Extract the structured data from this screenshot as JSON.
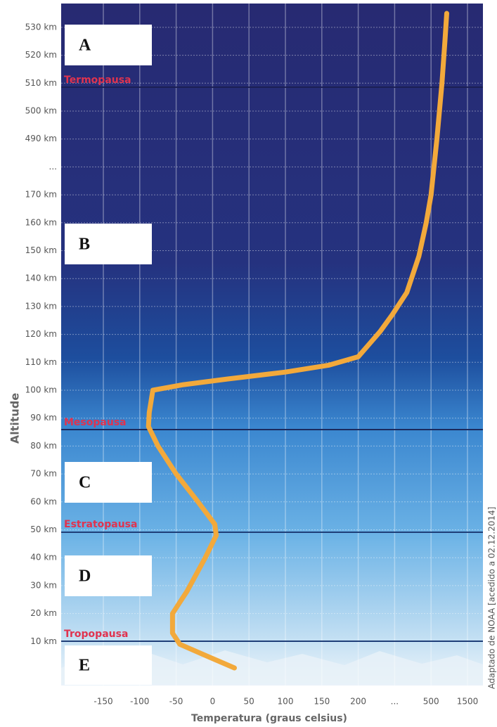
{
  "chart_data": {
    "type": "line",
    "y_label": "Altitude",
    "x_label": "Temperatura (graus celsius)",
    "source": "Adaptado de NOAA [acedido a 02.12.2014]",
    "layers": [
      "Termopausa",
      "Mesopausa",
      "Estratopausa",
      "Tropopausa"
    ],
    "boxes": [
      "A",
      "B",
      "C",
      "D",
      "E"
    ],
    "xticks": [
      -150,
      -100,
      -50,
      0,
      50,
      100,
      150,
      200,
      {
        "value": null,
        "label": "..."
      },
      500,
      1500
    ],
    "yticks": [
      {
        "value": 10,
        "label": "10 km"
      },
      {
        "value": 20,
        "label": "20 km"
      },
      {
        "value": 30,
        "label": "30 km"
      },
      {
        "value": 40,
        "label": "40 km"
      },
      {
        "value": 50,
        "label": "50 km"
      },
      {
        "value": 60,
        "label": "60 km"
      },
      {
        "value": 70,
        "label": "70 km"
      },
      {
        "value": 80,
        "label": "80 km"
      },
      {
        "value": 90,
        "label": "90 km"
      },
      {
        "value": 100,
        "label": "100 km"
      },
      {
        "value": 110,
        "label": "110 km"
      },
      {
        "value": 120,
        "label": "120 km"
      },
      {
        "value": 130,
        "label": "130 km"
      },
      {
        "value": 140,
        "label": "140 km"
      },
      {
        "value": 150,
        "label": "150 km"
      },
      {
        "value": 160,
        "label": "160 km"
      },
      {
        "value": 170,
        "label": "170 km"
      },
      {
        "value": null,
        "label": "..."
      },
      {
        "value": 490,
        "label": "490 km"
      },
      {
        "value": 500,
        "label": "500 km"
      },
      {
        "value": 510,
        "label": "510 km"
      },
      {
        "value": 520,
        "label": "520 km"
      },
      {
        "value": 530,
        "label": "530 km"
      }
    ],
    "grid": true,
    "line": {
      "color": "#f2a93b",
      "x": [
        30,
        -10,
        -45,
        -55,
        -55,
        -35,
        -10,
        5,
        3,
        -20,
        -50,
        -75,
        -88,
        -87,
        -82,
        -40,
        20,
        100,
        160,
        200,
        240,
        290,
        340,
        400,
        450,
        480,
        500,
        660,
        800,
        880,
        930
      ],
      "y": [
        0.5,
        5,
        9,
        13,
        20,
        28,
        40,
        48,
        52,
        60,
        70,
        80,
        87,
        92,
        100,
        102,
        104,
        106.5,
        109,
        112,
        116,
        121,
        127,
        135,
        148,
        160,
        170,
        490,
        510,
        525,
        535
      ]
    }
  }
}
